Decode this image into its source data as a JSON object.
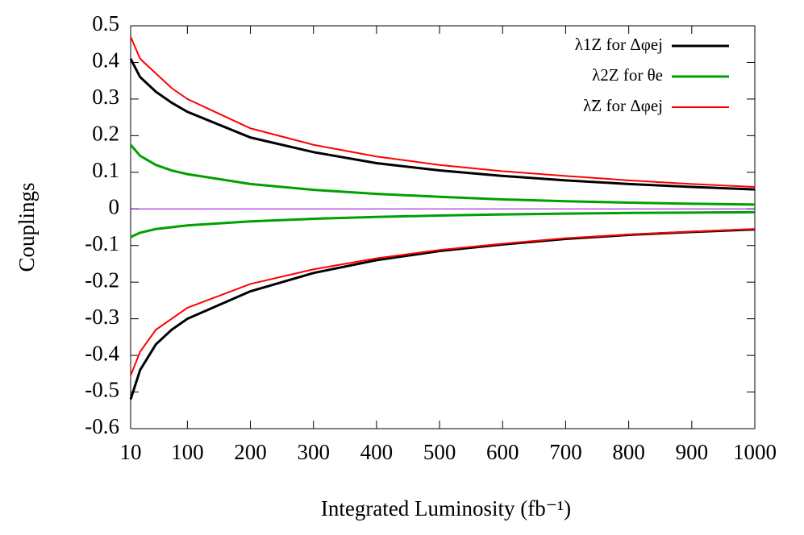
{
  "chart_data": {
    "type": "line",
    "x_label": "Integrated Luminosity (fb⁻¹)",
    "y_label": "Couplings",
    "x": [
      10,
      25,
      50,
      75,
      100,
      200,
      300,
      400,
      500,
      600,
      700,
      800,
      900,
      1000
    ],
    "series": [
      {
        "name": "λ1Z for Δφej",
        "color": "#000000",
        "values": [
          0.41,
          0.36,
          0.32,
          0.29,
          0.265,
          0.195,
          0.155,
          0.125,
          0.105,
          0.09,
          0.078,
          0.068,
          0.06,
          0.053
        ],
        "lower_values": [
          -0.52,
          -0.44,
          -0.37,
          -0.33,
          -0.3,
          -0.225,
          -0.175,
          -0.14,
          -0.115,
          -0.097,
          -0.082,
          -0.071,
          -0.063,
          -0.056
        ]
      },
      {
        "name": "λ2Z for θe",
        "color": "#00a000",
        "values": [
          0.175,
          0.145,
          0.12,
          0.105,
          0.095,
          0.068,
          0.052,
          0.041,
          0.033,
          0.026,
          0.021,
          0.017,
          0.014,
          0.012
        ],
        "lower_values": [
          -0.077,
          -0.065,
          -0.055,
          -0.05,
          -0.045,
          -0.034,
          -0.027,
          -0.022,
          -0.018,
          -0.015,
          -0.013,
          -0.011,
          -0.01,
          -0.009
        ]
      },
      {
        "name": "λ̃Z for Δφej",
        "color": "#ff0000",
        "values": [
          0.47,
          0.41,
          0.37,
          0.33,
          0.3,
          0.22,
          0.175,
          0.143,
          0.12,
          0.103,
          0.09,
          0.078,
          0.068,
          0.06
        ],
        "lower_values": [
          -0.455,
          -0.39,
          -0.33,
          -0.3,
          -0.27,
          -0.205,
          -0.165,
          -0.135,
          -0.112,
          -0.095,
          -0.08,
          -0.07,
          -0.062,
          -0.055
        ]
      }
    ],
    "hline": {
      "value": 0,
      "color": "#9400d3"
    },
    "xlim": [
      10,
      1000
    ],
    "xticks": [
      10,
      100,
      200,
      300,
      400,
      500,
      600,
      700,
      800,
      900,
      1000
    ],
    "ylim": [
      -0.6,
      0.5
    ],
    "yticks": [
      -0.6,
      -0.5,
      -0.4,
      -0.3,
      -0.2,
      -0.1,
      0,
      0.1,
      0.2,
      0.3,
      0.4,
      0.5
    ],
    "legend": "top-right"
  }
}
